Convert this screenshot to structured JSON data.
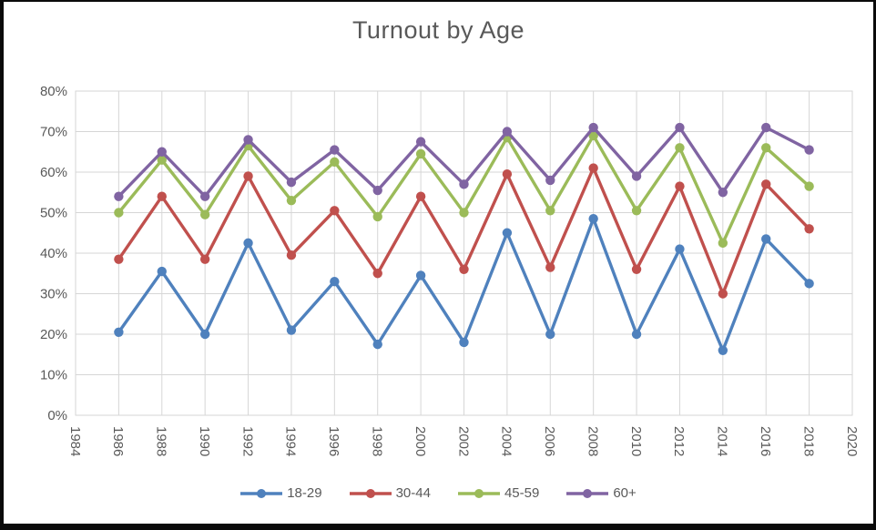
{
  "frame": {
    "border_color": "#0a0a0a",
    "background": "#ffffff",
    "text_color": "#595959",
    "grid_color": "#d6d6d6"
  },
  "chart_data": {
    "type": "line",
    "title": "Turnout by Age",
    "xlabel": "",
    "ylabel": "",
    "grid": true,
    "legend_position": "bottom",
    "marker": "circle",
    "xlim": [
      1984,
      2020
    ],
    "x_tick_step": 2,
    "x_tick_labels": [
      "1984",
      "1986",
      "1988",
      "1990",
      "1992",
      "1994",
      "1996",
      "1998",
      "2000",
      "2002",
      "2004",
      "2006",
      "2008",
      "2010",
      "2012",
      "2014",
      "2016",
      "2018",
      "2020"
    ],
    "ylim": [
      0,
      80
    ],
    "y_tick_step": 10,
    "y_tick_labels": [
      "0%",
      "10%",
      "20%",
      "30%",
      "40%",
      "50%",
      "60%",
      "70%",
      "80%"
    ],
    "x": [
      1986,
      1988,
      1990,
      1992,
      1994,
      1996,
      1998,
      2000,
      2002,
      2004,
      2006,
      2008,
      2010,
      2012,
      2014,
      2016,
      2018
    ],
    "series": [
      {
        "name": "18-29",
        "color": "#4F81BD",
        "values": [
          20.5,
          35.5,
          20,
          42.5,
          21,
          33,
          17.5,
          34.5,
          18,
          45,
          20,
          48.5,
          20,
          41,
          16,
          43.5,
          32.5
        ]
      },
      {
        "name": "30-44",
        "color": "#C0504D",
        "values": [
          38.5,
          54,
          38.5,
          59,
          39.5,
          50.5,
          35,
          54,
          36,
          59.5,
          36.5,
          61,
          36,
          56.5,
          30,
          57,
          46
        ]
      },
      {
        "name": "45-59",
        "color": "#9BBB59",
        "values": [
          50,
          63,
          49.5,
          66.5,
          53,
          62.5,
          49,
          64.5,
          50,
          68.5,
          50.5,
          69,
          50.5,
          66,
          42.5,
          66,
          56.5
        ]
      },
      {
        "name": "60+",
        "color": "#8064A2",
        "values": [
          54,
          65,
          54,
          68,
          57.5,
          65.5,
          55.5,
          67.5,
          57,
          70,
          58,
          71,
          59,
          71,
          55,
          71,
          65.5
        ]
      }
    ]
  }
}
